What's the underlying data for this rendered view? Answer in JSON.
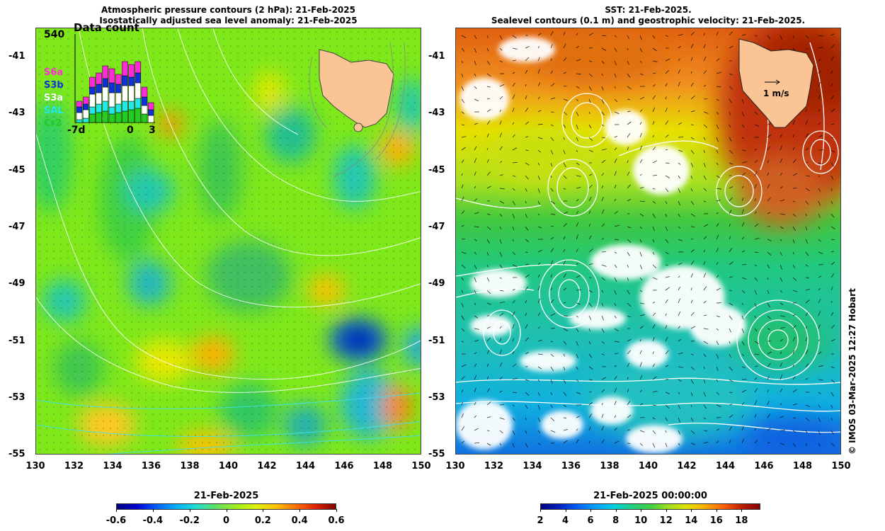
{
  "left_panel": {
    "title_line1": "Atmospheric pressure contours (2 hPa): 21-Feb-2025",
    "title_line2": "Isostatically adjusted sea level anomaly: 21-Feb-2025",
    "inset": {
      "max_count": "540",
      "title": "Data count",
      "legend": [
        {
          "name": "S6a",
          "color": "#ff2bd6"
        },
        {
          "name": "S3b",
          "color": "#1030d8"
        },
        {
          "name": "S3a",
          "color": "#ffffff"
        },
        {
          "name": "SAL",
          "color": "#22e8e8"
        },
        {
          "name": "Cr2",
          "color": "#22cc22"
        }
      ],
      "x_labels": [
        "-7d",
        "0",
        "3"
      ]
    },
    "colorbar": {
      "title": "21-Feb-2025",
      "min": -0.6,
      "max": 0.6,
      "ticks": [
        "-0.6",
        "-0.4",
        "-0.2",
        "0",
        "0.2",
        "0.4",
        "0.6"
      ]
    }
  },
  "right_panel": {
    "title_line1": "SST: 21-Feb-2025.",
    "title_line2": "Sealevel contours (0.1 m) and geostrophic velocity: 21-Feb-2025.",
    "velocity_scale": "1 m/s",
    "colorbar": {
      "title": "21-Feb-2025 00:00:00",
      "min": 2,
      "max": 19.5,
      "ticks": [
        "2",
        "4",
        "6",
        "8",
        "10",
        "12",
        "14",
        "16",
        "18"
      ]
    }
  },
  "axes": {
    "lon_ticks": [
      "130",
      "132",
      "134",
      "136",
      "138",
      "140",
      "142",
      "144",
      "146",
      "148",
      "150"
    ],
    "lat_ticks": [
      "-41",
      "-43",
      "-45",
      "-47",
      "-49",
      "-51",
      "-53",
      "-55"
    ]
  },
  "credit": "© IMOS 03-Mar-2025 12:27 Hobart",
  "colors": {
    "land": "#fbc495",
    "sla_cmap": [
      "#000080",
      "#0000d0",
      "#0060ff",
      "#00b0ff",
      "#20e0d0",
      "#60e060",
      "#a0f020",
      "#e0f000",
      "#ffc000",
      "#ff7000",
      "#e02000",
      "#800000"
    ],
    "sst_cmap": [
      "#000080",
      "#0020c0",
      "#0060ff",
      "#00a0ff",
      "#00d0e0",
      "#20d080",
      "#40d040",
      "#a0e020",
      "#e0e000",
      "#ffb000",
      "#ff6000",
      "#c02000",
      "#800000"
    ]
  }
}
